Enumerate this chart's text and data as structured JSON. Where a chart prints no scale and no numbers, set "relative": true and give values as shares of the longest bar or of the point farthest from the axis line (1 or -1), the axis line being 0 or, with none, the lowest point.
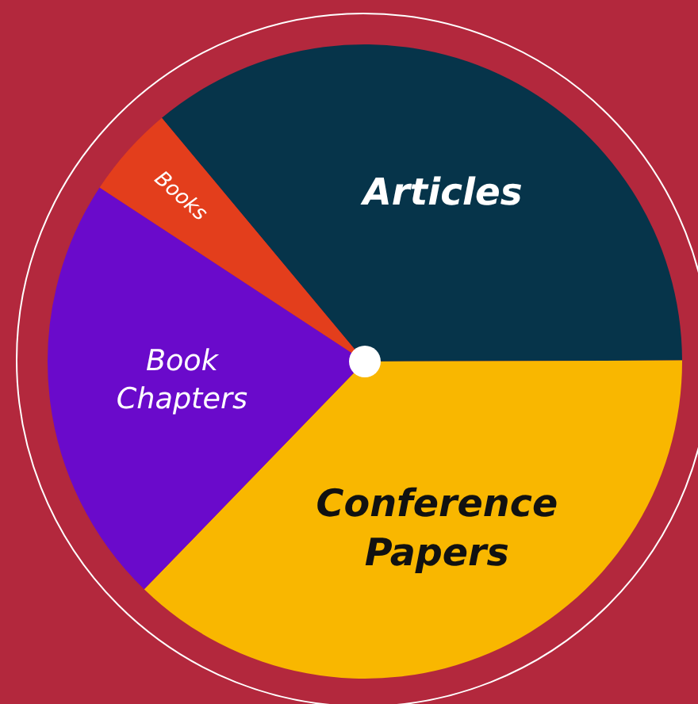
{
  "chart_data": {
    "type": "pie",
    "relative": true,
    "categories": [
      "Articles",
      "Conference Papers",
      "Book Chapters",
      "Books"
    ],
    "values": [
      36,
      37.3,
      22,
      4.7
    ],
    "colors": [
      "#06344a",
      "#f9b700",
      "#6a0acb",
      "#e33e1c"
    ],
    "legend": false
  }
}
